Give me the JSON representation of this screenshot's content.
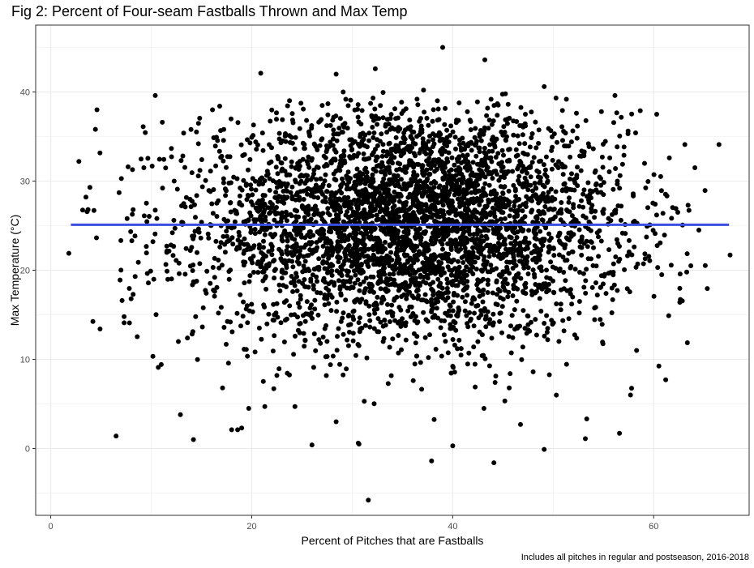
{
  "chart_data": {
    "type": "scatter",
    "title": "Fig 2: Percent of Four-seam Fastballs Thrown and Max Temp",
    "xlabel": "Percent of Pitches that are Fastballs",
    "ylabel": "Max Temperature (°C)",
    "caption": "Includes all pitches in regular and postseason, 2016-2018",
    "xlim": [
      -1.5,
      69.5
    ],
    "ylim": [
      -7.5,
      47.5
    ],
    "x_ticks": [
      0,
      20,
      40,
      60
    ],
    "y_ticks": [
      0,
      10,
      20,
      30,
      40
    ],
    "x_tick_labels": [
      "0",
      "20",
      "40",
      "60"
    ],
    "y_tick_labels": [
      "0",
      "10",
      "20",
      "30",
      "40"
    ],
    "grid": true,
    "point_color": "#000000",
    "trend_line": {
      "type": "linear",
      "x": [
        2.0,
        67.5
      ],
      "y": [
        25.1,
        25.1
      ],
      "color": "#3b4ee0"
    },
    "highlighted_points": [
      [
        1.8,
        21.9
      ],
      [
        2.8,
        32.2
      ],
      [
        3.5,
        28.2
      ],
      [
        3.9,
        29.3
      ],
      [
        4.3,
        26.7
      ],
      [
        4.6,
        38.0
      ],
      [
        6.5,
        1.4
      ],
      [
        6.8,
        28.7
      ],
      [
        6.9,
        18.9
      ],
      [
        7.1,
        16.6
      ],
      [
        7.3,
        14.8
      ],
      [
        7.3,
        14.1
      ],
      [
        7.6,
        25.8
      ],
      [
        7.7,
        31.6
      ],
      [
        8.0,
        16.8
      ],
      [
        8.2,
        26.8
      ],
      [
        8.4,
        19.3
      ],
      [
        9.3,
        26.1
      ],
      [
        9.2,
        36.1
      ],
      [
        10.4,
        39.6
      ],
      [
        10.7,
        9.1
      ],
      [
        11.1,
        36.6
      ],
      [
        12.7,
        12.0
      ],
      [
        12.9,
        3.8
      ],
      [
        13.6,
        12.4
      ],
      [
        14.2,
        1.0
      ],
      [
        16.1,
        38.0
      ],
      [
        17.1,
        6.8
      ],
      [
        18.0,
        2.1
      ],
      [
        18.6,
        2.1
      ],
      [
        19.0,
        2.3
      ],
      [
        19.7,
        4.5
      ],
      [
        20.9,
        42.1
      ],
      [
        21.3,
        4.7
      ],
      [
        22.2,
        6.7
      ],
      [
        24.3,
        4.7
      ],
      [
        26.0,
        0.4
      ],
      [
        28.4,
        42.0
      ],
      [
        28.4,
        3.0
      ],
      [
        29.1,
        40.0
      ],
      [
        30.6,
        0.6
      ],
      [
        31.2,
        5.3
      ],
      [
        31.6,
        -5.8
      ],
      [
        32.3,
        42.6
      ],
      [
        37.1,
        40.2
      ],
      [
        37.9,
        -1.4
      ],
      [
        39.0,
        45.0
      ],
      [
        40.0,
        0.3
      ],
      [
        43.2,
        43.6
      ],
      [
        44.1,
        -1.6
      ],
      [
        49.1,
        40.6
      ],
      [
        49.1,
        -0.1
      ],
      [
        53.2,
        1.1
      ],
      [
        56.6,
        1.7
      ],
      [
        57.7,
        6.0
      ],
      [
        58.3,
        11.0
      ],
      [
        60.3,
        37.5
      ],
      [
        61.2,
        7.7
      ],
      [
        62.6,
        16.4
      ],
      [
        63.1,
        34.1
      ],
      [
        63.7,
        20.5
      ],
      [
        64.1,
        31.5
      ],
      [
        64.5,
        24.5
      ],
      [
        66.5,
        34.1
      ],
      [
        67.6,
        21.7
      ],
      [
        54.8,
        37.8
      ],
      [
        58.1,
        25.5
      ],
      [
        60.8,
        19.5
      ],
      [
        62.4,
        26.5
      ],
      [
        61.5,
        14.9
      ]
    ],
    "bulk_cloud_approx": {
      "description": "dense cloud of several thousand points",
      "x_center": 36,
      "x_sd": 10.5,
      "y_center": 25.2,
      "y_sd": 6.4,
      "n": 4300
    }
  }
}
